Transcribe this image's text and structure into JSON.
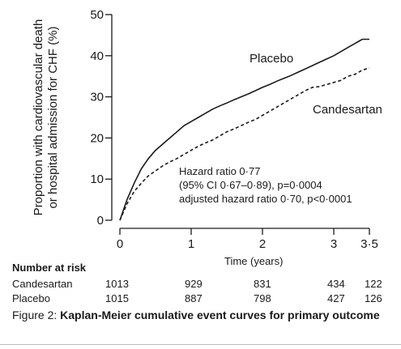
{
  "chart_data": {
    "type": "line",
    "ylabel": "Proportion with cardiovascular death or hospital admission for CHF (%)",
    "ylabel_lines": [
      "Proportion with cardiovascular death",
      "or hospital admission for CHF (%)"
    ],
    "xlabel": "Time (years)",
    "xlim": [
      0,
      3.5
    ],
    "ylim": [
      0,
      50
    ],
    "x_ticks": [
      0,
      1,
      2,
      3,
      3.5
    ],
    "x_tick_labels": [
      "0",
      "1",
      "2",
      "3",
      "3·5"
    ],
    "y_ticks": [
      0,
      10,
      20,
      30,
      40,
      50
    ],
    "y_tick_labels": [
      "0",
      "10",
      "20",
      "30",
      "40",
      "50"
    ],
    "grid": false,
    "series": [
      {
        "name": "Placebo",
        "style": "solid",
        "color": "#1a1a1a",
        "points": [
          [
            0,
            0
          ],
          [
            0.05,
            2.5
          ],
          [
            0.1,
            5
          ],
          [
            0.2,
            9
          ],
          [
            0.3,
            12.5
          ],
          [
            0.4,
            15
          ],
          [
            0.5,
            17
          ],
          [
            0.6,
            18.5
          ],
          [
            0.7,
            20
          ],
          [
            0.8,
            21.5
          ],
          [
            0.9,
            23
          ],
          [
            1.0,
            24
          ],
          [
            1.1,
            25
          ],
          [
            1.2,
            26
          ],
          [
            1.3,
            27
          ],
          [
            1.4,
            27.8
          ],
          [
            1.5,
            28.5
          ],
          [
            1.6,
            29.3
          ],
          [
            1.7,
            30
          ],
          [
            1.8,
            30.7
          ],
          [
            1.9,
            31.5
          ],
          [
            2.0,
            32.3
          ],
          [
            2.1,
            33
          ],
          [
            2.2,
            33.8
          ],
          [
            2.3,
            34.5
          ],
          [
            2.4,
            35.2
          ],
          [
            2.5,
            36
          ],
          [
            2.6,
            36.8
          ],
          [
            2.7,
            37.6
          ],
          [
            2.8,
            38.4
          ],
          [
            2.9,
            39.2
          ],
          [
            3.0,
            40
          ],
          [
            3.1,
            41
          ],
          [
            3.2,
            42
          ],
          [
            3.3,
            43
          ],
          [
            3.35,
            43.5
          ],
          [
            3.4,
            44
          ],
          [
            3.45,
            44
          ],
          [
            3.5,
            44
          ]
        ]
      },
      {
        "name": "Candesartan",
        "style": "dashed",
        "color": "#1a1a1a",
        "points": [
          [
            0,
            0
          ],
          [
            0.05,
            2
          ],
          [
            0.1,
            4
          ],
          [
            0.2,
            7
          ],
          [
            0.3,
            9
          ],
          [
            0.4,
            10.8
          ],
          [
            0.5,
            12
          ],
          [
            0.6,
            13.2
          ],
          [
            0.7,
            14.2
          ],
          [
            0.8,
            15
          ],
          [
            0.9,
            16
          ],
          [
            1.0,
            17
          ],
          [
            1.1,
            18
          ],
          [
            1.2,
            18.8
          ],
          [
            1.3,
            19.5
          ],
          [
            1.4,
            20.5
          ],
          [
            1.5,
            21.5
          ],
          [
            1.6,
            22.2
          ],
          [
            1.7,
            23
          ],
          [
            1.8,
            23.8
          ],
          [
            1.9,
            24.5
          ],
          [
            2.0,
            25.5
          ],
          [
            2.1,
            26.5
          ],
          [
            2.2,
            27.5
          ],
          [
            2.3,
            28.5
          ],
          [
            2.4,
            29.5
          ],
          [
            2.5,
            30.5
          ],
          [
            2.6,
            31.5
          ],
          [
            2.7,
            32.3
          ],
          [
            2.8,
            32.5
          ],
          [
            2.9,
            33
          ],
          [
            3.0,
            33.5
          ],
          [
            3.1,
            34
          ],
          [
            3.2,
            35
          ],
          [
            3.3,
            35.5
          ],
          [
            3.4,
            36.5
          ],
          [
            3.5,
            37
          ]
        ]
      }
    ],
    "series_labels": [
      "Placebo",
      "Candesartan"
    ],
    "annotation": [
      "Hazard ratio 0·77",
      "(95% CI 0·67–0·89), p=0·0004",
      "adjusted hazard ratio 0·70, p<0·0001"
    ],
    "number_at_risk": {
      "title": "Number at risk",
      "rows": [
        {
          "label": "Candesartan",
          "values": [
            "1013",
            "929",
            "831",
            "434",
            "122"
          ]
        },
        {
          "label": "Placebo",
          "values": [
            "1015",
            "887",
            "798",
            "427",
            "126"
          ]
        }
      ]
    }
  },
  "caption": {
    "prefix": "Figure 2: ",
    "bold": "Kaplan-Meier cumulative event curves for primary outcome"
  }
}
